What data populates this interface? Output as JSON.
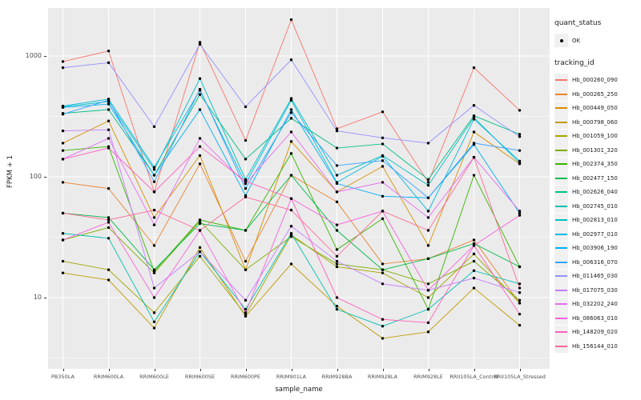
{
  "legend": {
    "quant_title": "quant_status",
    "quant_value": "OK",
    "tracking_title": "tracking_id"
  },
  "chart_data": {
    "type": "line",
    "title": "",
    "xlabel": "sample_name",
    "ylabel": "FPKM + 1",
    "yscale": "log10",
    "ylim": [
      2.5,
      2600
    ],
    "yticks": [
      10,
      100,
      1000
    ],
    "panel_bg": "#EBEBEB",
    "grid_color": "#FFFFFF",
    "point_color": "#000000",
    "legend_position": "right",
    "categories": [
      "PB350LA",
      "RRIM600LA",
      "RRIM600LE",
      "RRIM600SE",
      "RRIM600PE",
      "RRIM901LA",
      "RRIM928BA",
      "RRIM928LA",
      "RRIM928LE",
      "RRII105LA_Control",
      "RRII105LA_Stressed"
    ],
    "quant_status": "OK",
    "series": [
      {
        "name": "Hb_000260_090",
        "color": "#F8766D",
        "values": [
          900,
          1100,
          75,
          1300,
          200,
          2000,
          250,
          345,
          90,
          800,
          355
        ]
      },
      {
        "name": "Hb_000265_250",
        "color": "#EA8331",
        "values": [
          90,
          80,
          27,
          128,
          20,
          103,
          62,
          19,
          21,
          30,
          9
        ]
      },
      {
        "name": "Hb_000449_050",
        "color": "#D89000",
        "values": [
          190,
          290,
          46,
          150,
          17,
          196,
          75,
          122,
          27,
          235,
          128
        ]
      },
      {
        "name": "Hb_000798_060",
        "color": "#C09B00",
        "values": [
          16,
          14,
          5.6,
          26,
          7,
          19,
          8.5,
          4.6,
          5.2,
          12,
          5.9
        ]
      },
      {
        "name": "Hb_001059_100",
        "color": "#A3A500",
        "values": [
          20,
          17,
          7.5,
          22,
          7.2,
          33,
          18,
          16,
          10,
          23,
          9
        ]
      },
      {
        "name": "Hb_001301_320",
        "color": "#7CAE00",
        "values": [
          30,
          38,
          16,
          43,
          17,
          32,
          19,
          17,
          13,
          20,
          9.5
        ]
      },
      {
        "name": "Hb_002374_350",
        "color": "#39B600",
        "values": [
          165,
          178,
          16.5,
          44,
          36,
          156,
          25,
          45,
          8,
          103,
          18
        ]
      },
      {
        "name": "Hb_002477_150",
        "color": "#00BB4E",
        "values": [
          50,
          46,
          17,
          41,
          36,
          103,
          36,
          17,
          21,
          28,
          18
        ]
      },
      {
        "name": "Hb_002626_040",
        "color": "#00C087",
        "values": [
          335,
          360,
          103,
          480,
          140,
          305,
          173,
          187,
          95,
          320,
          225
        ]
      },
      {
        "name": "Hb_002745_010",
        "color": "#00C0B2",
        "values": [
          34,
          31,
          6.3,
          24,
          8,
          34,
          8,
          5.8,
          8,
          16.7,
          13
        ]
      },
      {
        "name": "Hb_002813_010",
        "color": "#00BFC4",
        "values": [
          380,
          420,
          115,
          650,
          95,
          445,
          103,
          150,
          85,
          310,
          130
        ]
      },
      {
        "name": "Hb_002977_010",
        "color": "#00BAE0",
        "values": [
          385,
          440,
          120,
          520,
          88,
          430,
          90,
          148,
          52,
          300,
          135
        ]
      },
      {
        "name": "Hb_003906_190",
        "color": "#00B0F6",
        "values": [
          375,
          400,
          103,
          360,
          70,
          360,
          88,
          69,
          67,
          185,
          50
        ]
      },
      {
        "name": "Hb_006316_070",
        "color": "#35A2FF",
        "values": [
          330,
          430,
          91,
          530,
          80,
          340,
          124,
          136,
          67,
          190,
          165
        ]
      },
      {
        "name": "Hb_011465_030",
        "color": "#9590FF",
        "values": [
          800,
          880,
          260,
          1250,
          380,
          930,
          240,
          210,
          190,
          390,
          215
        ]
      },
      {
        "name": "Hb_017075_030",
        "color": "#C77CFF",
        "values": [
          240,
          245,
          12,
          24,
          9.5,
          39,
          20,
          13,
          11.5,
          14.5,
          11
        ]
      },
      {
        "name": "Hb_032202_240",
        "color": "#E76BF3",
        "values": [
          140,
          208,
          40,
          208,
          88,
          235,
          75,
          90,
          46,
          145,
          52
        ]
      },
      {
        "name": "Hb_086063_010",
        "color": "#FA62DB",
        "values": [
          30,
          42,
          10,
          36,
          7.5,
          66,
          40,
          52,
          11.5,
          27,
          48
        ]
      },
      {
        "name": "Hb_148209_020",
        "color": "#FF62BC",
        "values": [
          140,
          173,
          75,
          178,
          92,
          66,
          10,
          6.6,
          6.2,
          27,
          7.3
        ]
      },
      {
        "name": "Hb_156144_010",
        "color": "#FF6A98",
        "values": [
          50,
          44,
          53,
          36,
          68,
          53,
          22,
          52,
          36,
          145,
          12
        ]
      }
    ]
  }
}
